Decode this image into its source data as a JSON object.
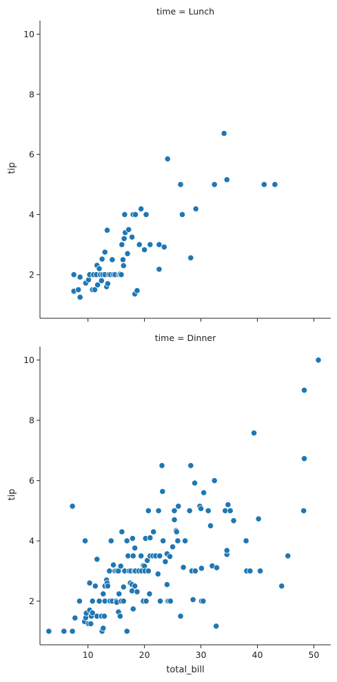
{
  "chart_data": [
    {
      "type": "scatter",
      "title": "time = Lunch",
      "xlabel": "",
      "ylabel": "tip",
      "xlim": [
        1.5,
        53
      ],
      "ylim": [
        0.55,
        10.45
      ],
      "xticks": [
        10,
        20,
        30,
        40,
        50
      ],
      "xtick_labels_visible": false,
      "yticks": [
        2,
        4,
        6,
        8,
        10
      ],
      "grid": false,
      "color": "#1f77b4",
      "points": [
        [
          7.5,
          2.0
        ],
        [
          7.5,
          1.45
        ],
        [
          8.3,
          1.5
        ],
        [
          8.6,
          1.25
        ],
        [
          8.6,
          1.92
        ],
        [
          9.6,
          1.72
        ],
        [
          10.1,
          1.83
        ],
        [
          10.2,
          2.0
        ],
        [
          10.3,
          2.0
        ],
        [
          10.8,
          1.5
        ],
        [
          11.0,
          2.0
        ],
        [
          11.2,
          1.5
        ],
        [
          11.5,
          2.0
        ],
        [
          11.6,
          2.31
        ],
        [
          11.7,
          1.66
        ],
        [
          12.0,
          2.2
        ],
        [
          12.2,
          2.0
        ],
        [
          12.4,
          1.8
        ],
        [
          12.5,
          2.52
        ],
        [
          12.6,
          2.0
        ],
        [
          13.0,
          2.0
        ],
        [
          13.0,
          2.75
        ],
        [
          13.3,
          1.6
        ],
        [
          13.4,
          3.48
        ],
        [
          13.5,
          1.7
        ],
        [
          13.7,
          2.0
        ],
        [
          14.0,
          2.0
        ],
        [
          14.3,
          2.5
        ],
        [
          14.5,
          2.0
        ],
        [
          14.8,
          2.0
        ],
        [
          15.5,
          2.0
        ],
        [
          15.7,
          2.02
        ],
        [
          15.9,
          2.0
        ],
        [
          16.0,
          3.0
        ],
        [
          16.2,
          2.5
        ],
        [
          16.3,
          2.3
        ],
        [
          16.4,
          3.2
        ],
        [
          16.5,
          4.0
        ],
        [
          16.6,
          3.4
        ],
        [
          17.0,
          2.7
        ],
        [
          17.2,
          3.5
        ],
        [
          17.8,
          3.25
        ],
        [
          18.0,
          4.0
        ],
        [
          18.3,
          1.36
        ],
        [
          18.4,
          4.0
        ],
        [
          18.7,
          1.47
        ],
        [
          19.1,
          3.0
        ],
        [
          19.4,
          4.19
        ],
        [
          20.0,
          2.83
        ],
        [
          20.3,
          4.0
        ],
        [
          21.0,
          3.0
        ],
        [
          22.6,
          2.18
        ],
        [
          22.6,
          3.0
        ],
        [
          23.5,
          2.92
        ],
        [
          24.1,
          5.85
        ],
        [
          26.4,
          5.0
        ],
        [
          26.7,
          4.0
        ],
        [
          28.2,
          2.56
        ],
        [
          29.1,
          4.19
        ],
        [
          32.4,
          5.0
        ],
        [
          34.1,
          6.7
        ],
        [
          34.6,
          5.16
        ],
        [
          41.2,
          5.0
        ],
        [
          43.1,
          5.0
        ]
      ]
    },
    {
      "type": "scatter",
      "title": "time = Dinner",
      "xlabel": "total_bill",
      "ylabel": "tip",
      "xlim": [
        1.5,
        53
      ],
      "ylim": [
        0.55,
        10.45
      ],
      "xticks": [
        10,
        20,
        30,
        40,
        50
      ],
      "xtick_labels_visible": true,
      "yticks": [
        2,
        4,
        6,
        8,
        10
      ],
      "grid": false,
      "color": "#1f77b4",
      "points": [
        [
          3.07,
          1.0
        ],
        [
          5.75,
          1.0
        ],
        [
          7.25,
          1.0
        ],
        [
          7.25,
          5.15
        ],
        [
          7.7,
          1.44
        ],
        [
          8.5,
          2.0
        ],
        [
          9.4,
          1.32
        ],
        [
          9.5,
          4.0
        ],
        [
          9.6,
          1.45
        ],
        [
          9.7,
          1.6
        ],
        [
          10.1,
          1.25
        ],
        [
          10.3,
          1.7
        ],
        [
          10.3,
          2.6
        ],
        [
          10.5,
          1.25
        ],
        [
          10.6,
          1.5
        ],
        [
          10.8,
          1.61
        ],
        [
          10.8,
          2.0
        ],
        [
          11.3,
          2.5
        ],
        [
          11.6,
          3.39
        ],
        [
          11.6,
          1.5
        ],
        [
          12.0,
          2.0
        ],
        [
          12.4,
          1.5
        ],
        [
          12.5,
          1.0
        ],
        [
          12.7,
          1.1
        ],
        [
          12.7,
          2.24
        ],
        [
          12.9,
          1.5
        ],
        [
          13.0,
          2.0
        ],
        [
          13.0,
          2.5
        ],
        [
          13.3,
          2.7
        ],
        [
          13.4,
          2.6
        ],
        [
          13.5,
          2.5
        ],
        [
          13.8,
          3.0
        ],
        [
          13.9,
          2.0
        ],
        [
          14.1,
          4.0
        ],
        [
          14.3,
          2.0
        ],
        [
          14.5,
          3.2
        ],
        [
          14.8,
          3.0
        ],
        [
          15.0,
          2.0
        ],
        [
          15.1,
          3.0
        ],
        [
          15.1,
          1.96
        ],
        [
          15.4,
          1.64
        ],
        [
          15.4,
          3.0
        ],
        [
          15.5,
          2.24
        ],
        [
          15.7,
          1.5
        ],
        [
          15.8,
          3.16
        ],
        [
          15.9,
          2.0
        ],
        [
          16.0,
          4.3
        ],
        [
          16.3,
          2.0
        ],
        [
          16.3,
          2.47
        ],
        [
          16.5,
          3.0
        ],
        [
          16.9,
          4.0
        ],
        [
          16.9,
          1.0
        ],
        [
          17.1,
          3.5
        ],
        [
          17.3,
          3.0
        ],
        [
          17.5,
          2.6
        ],
        [
          17.6,
          3.0
        ],
        [
          17.8,
          2.55
        ],
        [
          17.8,
          2.34
        ],
        [
          17.9,
          4.08
        ],
        [
          18.0,
          3.5
        ],
        [
          18.0,
          1.74
        ],
        [
          18.2,
          3.0
        ],
        [
          18.3,
          2.5
        ],
        [
          18.3,
          3.76
        ],
        [
          18.4,
          3.0
        ],
        [
          18.7,
          2.31
        ],
        [
          19.0,
          3.0
        ],
        [
          19.4,
          3.5
        ],
        [
          19.5,
          3.0
        ],
        [
          19.8,
          3.18
        ],
        [
          19.8,
          2.0
        ],
        [
          20.0,
          3.16
        ],
        [
          20.1,
          3.0
        ],
        [
          20.2,
          4.08
        ],
        [
          20.3,
          2.0
        ],
        [
          20.5,
          3.35
        ],
        [
          20.7,
          3.0
        ],
        [
          20.7,
          5.0
        ],
        [
          20.9,
          2.24
        ],
        [
          21.0,
          4.1
        ],
        [
          21.0,
          3.5
        ],
        [
          21.5,
          3.5
        ],
        [
          21.6,
          4.3
        ],
        [
          22.0,
          3.5
        ],
        [
          22.4,
          2.9
        ],
        [
          22.5,
          5.0
        ],
        [
          22.7,
          3.5
        ],
        [
          22.8,
          2.0
        ],
        [
          23.1,
          6.5
        ],
        [
          23.2,
          5.64
        ],
        [
          23.3,
          4.0
        ],
        [
          23.7,
          3.31
        ],
        [
          24.0,
          3.57
        ],
        [
          24.0,
          2.55
        ],
        [
          24.1,
          2.0
        ],
        [
          24.3,
          2.0
        ],
        [
          24.5,
          3.48
        ],
        [
          24.6,
          2.0
        ],
        [
          25.0,
          3.8
        ],
        [
          25.3,
          4.7
        ],
        [
          25.3,
          5.0
        ],
        [
          25.6,
          4.34
        ],
        [
          25.7,
          4.3
        ],
        [
          25.9,
          4.0
        ],
        [
          26.0,
          5.15
        ],
        [
          26.4,
          1.5
        ],
        [
          26.9,
          3.12
        ],
        [
          27.2,
          4.0
        ],
        [
          28.0,
          5.0
        ],
        [
          28.2,
          6.5
        ],
        [
          28.4,
          3.0
        ],
        [
          28.6,
          2.05
        ],
        [
          28.9,
          5.92
        ],
        [
          29.0,
          3.0
        ],
        [
          29.8,
          5.15
        ],
        [
          30.0,
          5.07
        ],
        [
          30.1,
          3.09
        ],
        [
          30.1,
          2.0
        ],
        [
          30.4,
          2.0
        ],
        [
          30.5,
          5.6
        ],
        [
          31.3,
          5.0
        ],
        [
          31.7,
          4.5
        ],
        [
          32.0,
          3.17
        ],
        [
          32.4,
          6.0
        ],
        [
          32.7,
          1.17
        ],
        [
          32.8,
          3.11
        ],
        [
          34.3,
          5.0
        ],
        [
          34.6,
          3.55
        ],
        [
          34.6,
          3.68
        ],
        [
          34.8,
          5.2
        ],
        [
          35.2,
          5.0
        ],
        [
          35.8,
          4.67
        ],
        [
          38.0,
          4.0
        ],
        [
          38.1,
          3.0
        ],
        [
          38.7,
          3.0
        ],
        [
          39.4,
          7.58
        ],
        [
          40.2,
          4.73
        ],
        [
          40.5,
          3.0
        ],
        [
          44.3,
          2.5
        ],
        [
          45.4,
          3.5
        ],
        [
          48.2,
          5.0
        ],
        [
          48.3,
          6.73
        ],
        [
          48.3,
          9.0
        ],
        [
          50.8,
          10.0
        ]
      ]
    }
  ]
}
